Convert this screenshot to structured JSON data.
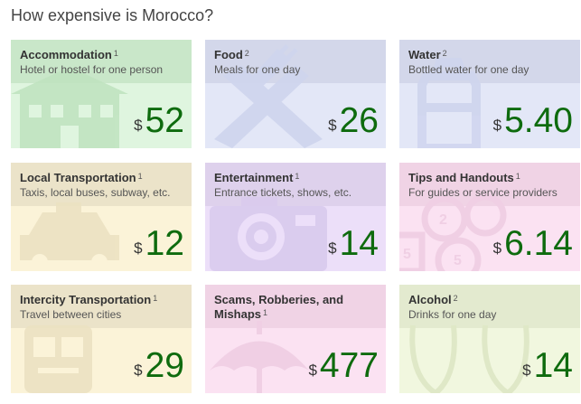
{
  "page": {
    "title": "How expensive is Morocco?"
  },
  "currency_symbol": "$",
  "cards": [
    {
      "id": "accommodation",
      "title": "Accommodation",
      "footnote": "1",
      "subtitle": "Hotel or hostel for one person",
      "amount": "52",
      "icon": "house-icon",
      "head_color": "#c9e7c9",
      "body_color": "#dff5df",
      "icon_color": "#bfe3bf"
    },
    {
      "id": "food",
      "title": "Food",
      "footnote": "2",
      "subtitle": "Meals for one day",
      "amount": "26",
      "icon": "fork-knife-icon",
      "head_color": "#d3d7ea",
      "body_color": "#e3e7f7",
      "icon_color": "#cfd5ee"
    },
    {
      "id": "water",
      "title": "Water",
      "footnote": "2",
      "subtitle": "Bottled water for one day",
      "amount": "5.40",
      "icon": "water-bottle-icon",
      "head_color": "#d3d7ea",
      "body_color": "#e3e7f7",
      "icon_color": "#cfd5ee"
    },
    {
      "id": "local-transportation",
      "title": "Local Transportation",
      "footnote": "1",
      "subtitle": "Taxis, local buses, subway, etc.",
      "amount": "12",
      "icon": "taxi-icon",
      "head_color": "#ebe3c9",
      "body_color": "#fbf3d8",
      "icon_color": "#ece2c2"
    },
    {
      "id": "entertainment",
      "title": "Entertainment",
      "footnote": "1",
      "subtitle": "Entrance tickets, shows, etc.",
      "amount": "14",
      "icon": "camera-icon",
      "head_color": "#ded1ec",
      "body_color": "#ecdff9",
      "icon_color": "#dacbee"
    },
    {
      "id": "tips-and-handouts",
      "title": "Tips and Handouts",
      "footnote": "1",
      "subtitle": "For guides or service providers",
      "amount": "6.14",
      "icon": "coins-icon",
      "head_color": "#f0d3e5",
      "body_color": "#fbe2f2",
      "icon_color": "#f0cfe4"
    },
    {
      "id": "intercity-transportation",
      "title": "Intercity Transportation",
      "footnote": "1",
      "subtitle": "Travel between cities",
      "amount": "29",
      "icon": "bus-icon",
      "head_color": "#ebe3c9",
      "body_color": "#fbf3d8",
      "icon_color": "#ece2c2"
    },
    {
      "id": "scams-robberies-mishaps",
      "title": "Scams, Robberies, and Mishaps",
      "footnote": "1",
      "subtitle": "",
      "amount": "477",
      "icon": "umbrella-icon",
      "head_color": "#f0d3e5",
      "body_color": "#fbe2f2",
      "icon_color": "#f0cfe4"
    },
    {
      "id": "alcohol",
      "title": "Alcohol",
      "footnote": "2",
      "subtitle": "Drinks for one day",
      "amount": "14",
      "icon": "glasses-icon",
      "head_color": "#e3eacf",
      "body_color": "#f1f7df",
      "icon_color": "#dfe8c6"
    }
  ]
}
